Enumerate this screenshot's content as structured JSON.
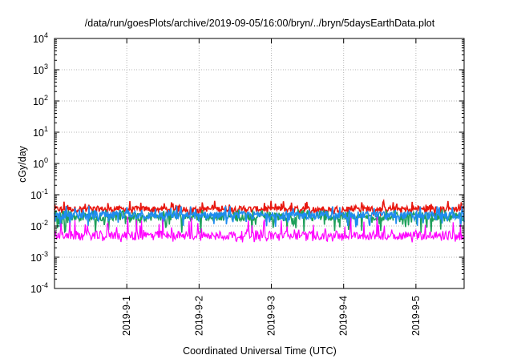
{
  "chart_data": {
    "type": "line",
    "title": "/data/run/goesPlots/archive/2019-09-05/16:00/bryn/../bryn/5daysEarthData.plot",
    "xlabel": "Coordinated Universal Time (UTC)",
    "ylabel": "cGy/day",
    "y_scale": "log",
    "ylim": [
      0.0001,
      10000
    ],
    "y_ticks": [
      {
        "value": 0.0001,
        "base": "10",
        "exp": "-4"
      },
      {
        "value": 0.001,
        "base": "10",
        "exp": "-3"
      },
      {
        "value": 0.01,
        "base": "10",
        "exp": "-2"
      },
      {
        "value": 0.1,
        "base": "10",
        "exp": "-1"
      },
      {
        "value": 1,
        "base": "10",
        "exp": "0"
      },
      {
        "value": 10,
        "base": "10",
        "exp": "1"
      },
      {
        "value": 100,
        "base": "10",
        "exp": "2"
      },
      {
        "value": 1000,
        "base": "10",
        "exp": "3"
      },
      {
        "value": 10000,
        "base": "10",
        "exp": "4"
      }
    ],
    "xlim": [
      "2019-08-31T00:00",
      "2019-09-05T16:00"
    ],
    "x_ticks": [
      {
        "value": "2019-09-01T00:00",
        "label": "2019-9-1"
      },
      {
        "value": "2019-09-02T00:00",
        "label": "2019-9-2"
      },
      {
        "value": "2019-09-03T00:00",
        "label": "2019-9-3"
      },
      {
        "value": "2019-09-04T00:00",
        "label": "2019-9-4"
      },
      {
        "value": "2019-09-05T00:00",
        "label": "2019-9-5"
      }
    ],
    "grid": true,
    "series": [
      {
        "color": "#e8170f",
        "typical": 0.035,
        "low": 0.02,
        "high": 0.065
      },
      {
        "color": "#1ea05a",
        "typical": 0.02,
        "low": 0.006,
        "high": 0.035
      },
      {
        "color": "#1e8cf0",
        "typical": 0.022,
        "low": 0.009,
        "high": 0.045
      },
      {
        "color": "#ff00ff",
        "typical": 0.005,
        "low": 0.003,
        "high": 0.02
      }
    ]
  }
}
